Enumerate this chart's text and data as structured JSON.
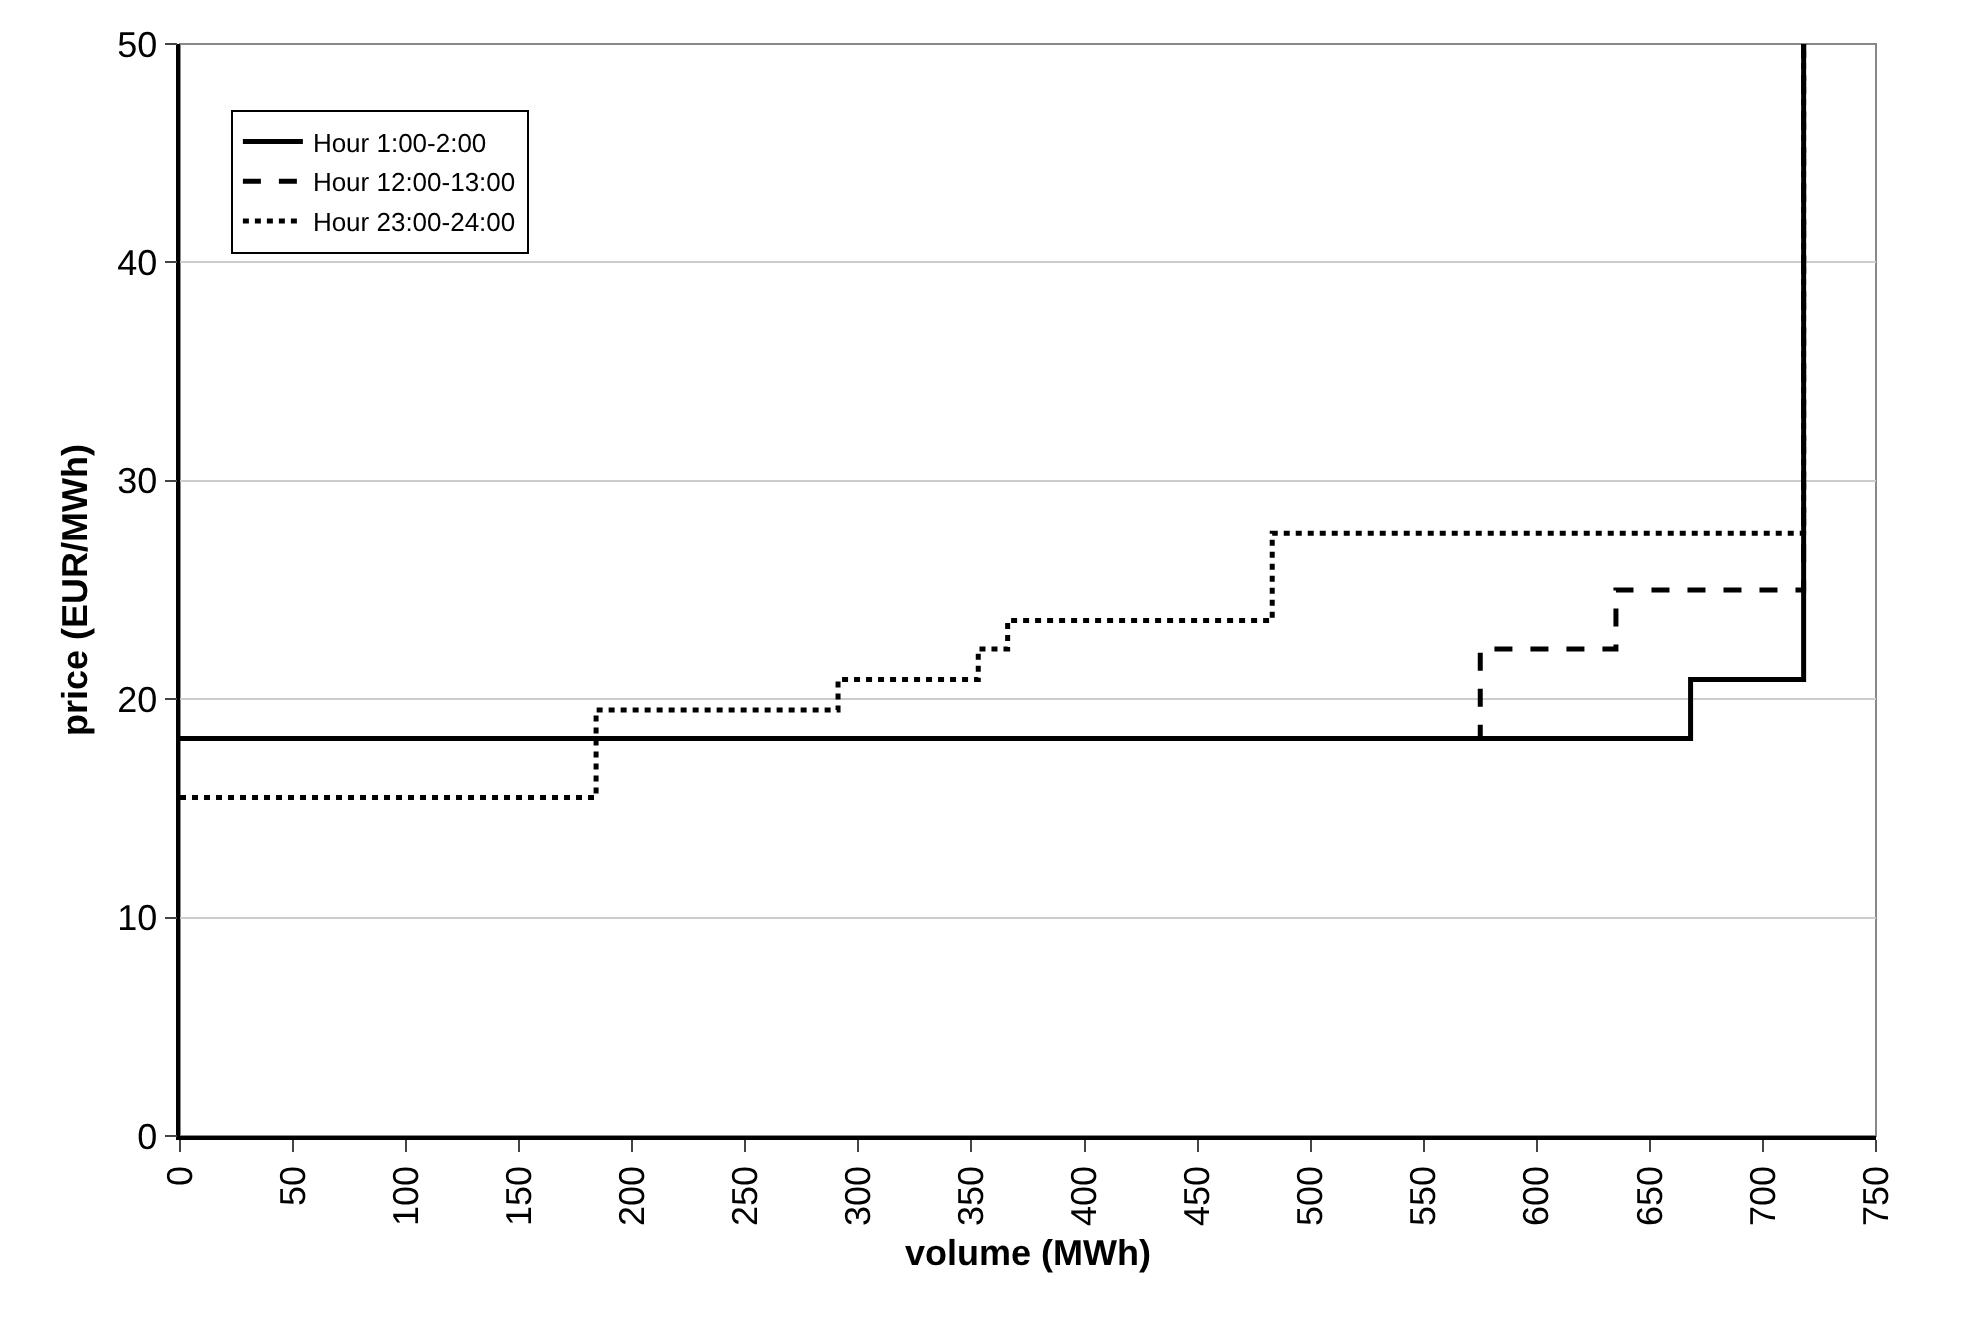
{
  "chart_data": {
    "type": "step",
    "xlabel": "volume (MWh)",
    "ylabel": "price (EUR/MWh)",
    "xlim": [
      0,
      750
    ],
    "xticks": [
      0,
      50,
      100,
      150,
      200,
      250,
      300,
      350,
      400,
      450,
      500,
      550,
      600,
      650,
      700,
      750
    ],
    "ylim": [
      0,
      50
    ],
    "yticks": [
      0,
      10,
      20,
      30,
      40,
      50
    ],
    "grid": "y",
    "legend": "top left",
    "marker": "none",
    "series": [
      {
        "name": "Hour 1:00-2:00",
        "color": "#000000",
        "line_style": "solid",
        "x": [
          0,
          668,
          718,
          718
        ],
        "values": [
          18.2,
          20.9,
          50,
          50
        ]
      },
      {
        "name": "Hour 12:00-13:00",
        "color": "#000000",
        "line_style": "dashed",
        "x": [
          0,
          575,
          635,
          718,
          718
        ],
        "values": [
          18.2,
          22.3,
          25.0,
          50,
          50
        ]
      },
      {
        "name": "Hour 23:00-24:00",
        "color": "#000000",
        "line_style": "dotted",
        "x": [
          0,
          184,
          291,
          353,
          366,
          483,
          718,
          718
        ],
        "values": [
          15.5,
          19.5,
          20.9,
          22.3,
          23.6,
          27.6,
          50,
          50
        ]
      }
    ]
  }
}
